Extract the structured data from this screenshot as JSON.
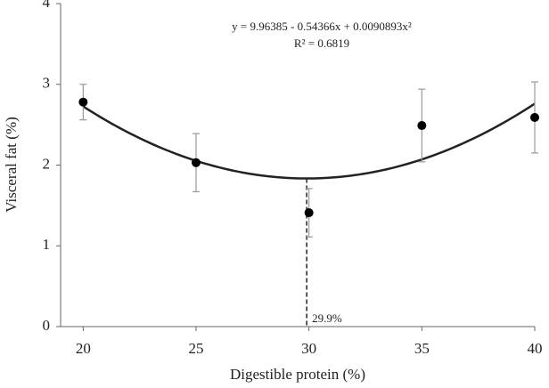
{
  "chart_data": {
    "type": "scatter",
    "x_label": "Digestible protein (%)",
    "y_label": "Visceral fat (%)",
    "xlim": [
      19,
      40
    ],
    "ylim": [
      0,
      4
    ],
    "xticks": [
      20,
      25,
      30,
      35,
      40
    ],
    "yticks": [
      0,
      1,
      2,
      3,
      4
    ],
    "series": [
      {
        "color": "#000000",
        "x": [
          20,
          25,
          30,
          35,
          40
        ],
        "values": [
          2.78,
          2.03,
          1.41,
          2.49,
          2.59
        ],
        "errors": [
          0.22,
          0.36,
          0.3,
          0.45,
          0.44
        ]
      }
    ],
    "fit": {
      "equation": "y = 9.96385 - 0.54366x + 0.0090893x²",
      "r_squared": "R² = 0.6819",
      "coefficients": [
        9.96385,
        -0.54366,
        0.0090893
      ]
    },
    "vline": {
      "x": 29.9,
      "label": "29.9%"
    }
  }
}
